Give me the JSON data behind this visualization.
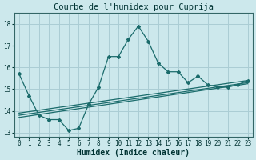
{
  "title": "Courbe de l'humidex pour Cuprija",
  "xlabel": "Humidex (Indice chaleur)",
  "bg_color": "#cce8ec",
  "grid_color": "#aacdd4",
  "line_color": "#1a6b6b",
  "x": [
    0,
    1,
    2,
    3,
    4,
    5,
    6,
    7,
    8,
    9,
    10,
    11,
    12,
    13,
    14,
    15,
    16,
    17,
    18,
    19,
    20,
    21,
    22,
    23
  ],
  "y_main": [
    15.7,
    14.7,
    13.8,
    13.6,
    13.6,
    13.1,
    13.2,
    14.3,
    15.1,
    16.5,
    16.5,
    17.3,
    17.9,
    17.2,
    16.2,
    15.8,
    15.8,
    15.3,
    15.6,
    15.2,
    15.1,
    15.1,
    15.2,
    15.4
  ],
  "y_line1_start": 13.9,
  "y_line1_end": 15.4,
  "y_line2_start": 13.8,
  "y_line2_end": 15.3,
  "y_line3_start": 13.7,
  "y_line3_end": 15.25,
  "ylim": [
    12.8,
    18.5
  ],
  "xlim": [
    -0.5,
    23.5
  ],
  "yticks": [
    13,
    14,
    15,
    16,
    17,
    18
  ],
  "xticks": [
    0,
    1,
    2,
    3,
    4,
    5,
    6,
    7,
    8,
    9,
    10,
    11,
    12,
    13,
    14,
    15,
    16,
    17,
    18,
    19,
    20,
    21,
    22,
    23
  ],
  "tick_fontsize": 5.5,
  "xlabel_fontsize": 7,
  "title_fontsize": 7.5
}
